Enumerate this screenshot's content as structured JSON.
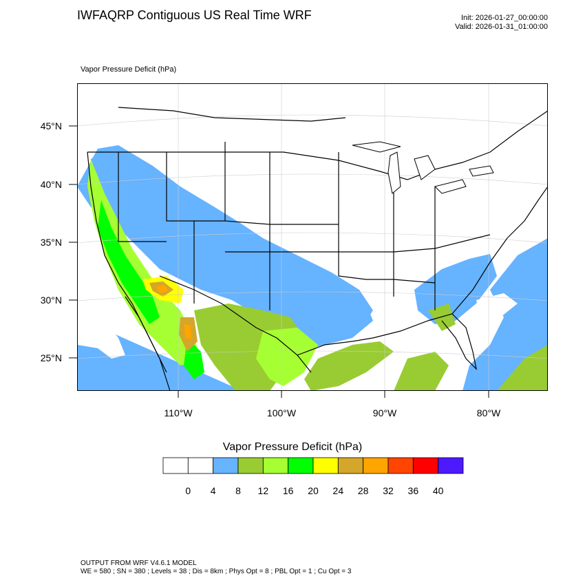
{
  "header": {
    "title": "IWFAQRP Contiguous US Real Time WRF",
    "init": "Init: 2026-01-27_00:00:00",
    "valid": "Valid: 2026-01-31_01:00:00"
  },
  "field_label": "Vapor Pressure Deficit   (hPa)",
  "map": {
    "lat_labels": [
      "45°N",
      "40°N",
      "35°N",
      "30°N",
      "25°N"
    ],
    "lon_labels": [
      "110°W",
      "100°W",
      "90°W",
      "80°W"
    ],
    "colors": {
      "water_open": "#ffffff",
      "land": "#ffffff",
      "boundary": "#000000",
      "graticule": "#cccccc"
    }
  },
  "colorbar": {
    "title": "Vapor Pressure Deficit  (hPa)",
    "labels": [
      "0",
      "4",
      "8",
      "12",
      "16",
      "20",
      "24",
      "28",
      "32",
      "36",
      "40"
    ],
    "colors": [
      "#ffffff",
      "#ffffff",
      "#66b3ff",
      "#99cc33",
      "#a6ff33",
      "#00ff00",
      "#ffff00",
      "#d4a62a",
      "#ffa500",
      "#ff4500",
      "#ff0000",
      "#4d1aff"
    ]
  },
  "footer": {
    "line1": "OUTPUT FROM WRF V4.6.1 MODEL",
    "line2": "WE = 580 ; SN = 380 ; Levels = 38 ; Dis = 8km ; Phys Opt = 8 ; PBL Opt = 1 ; Cu Opt = 3"
  }
}
